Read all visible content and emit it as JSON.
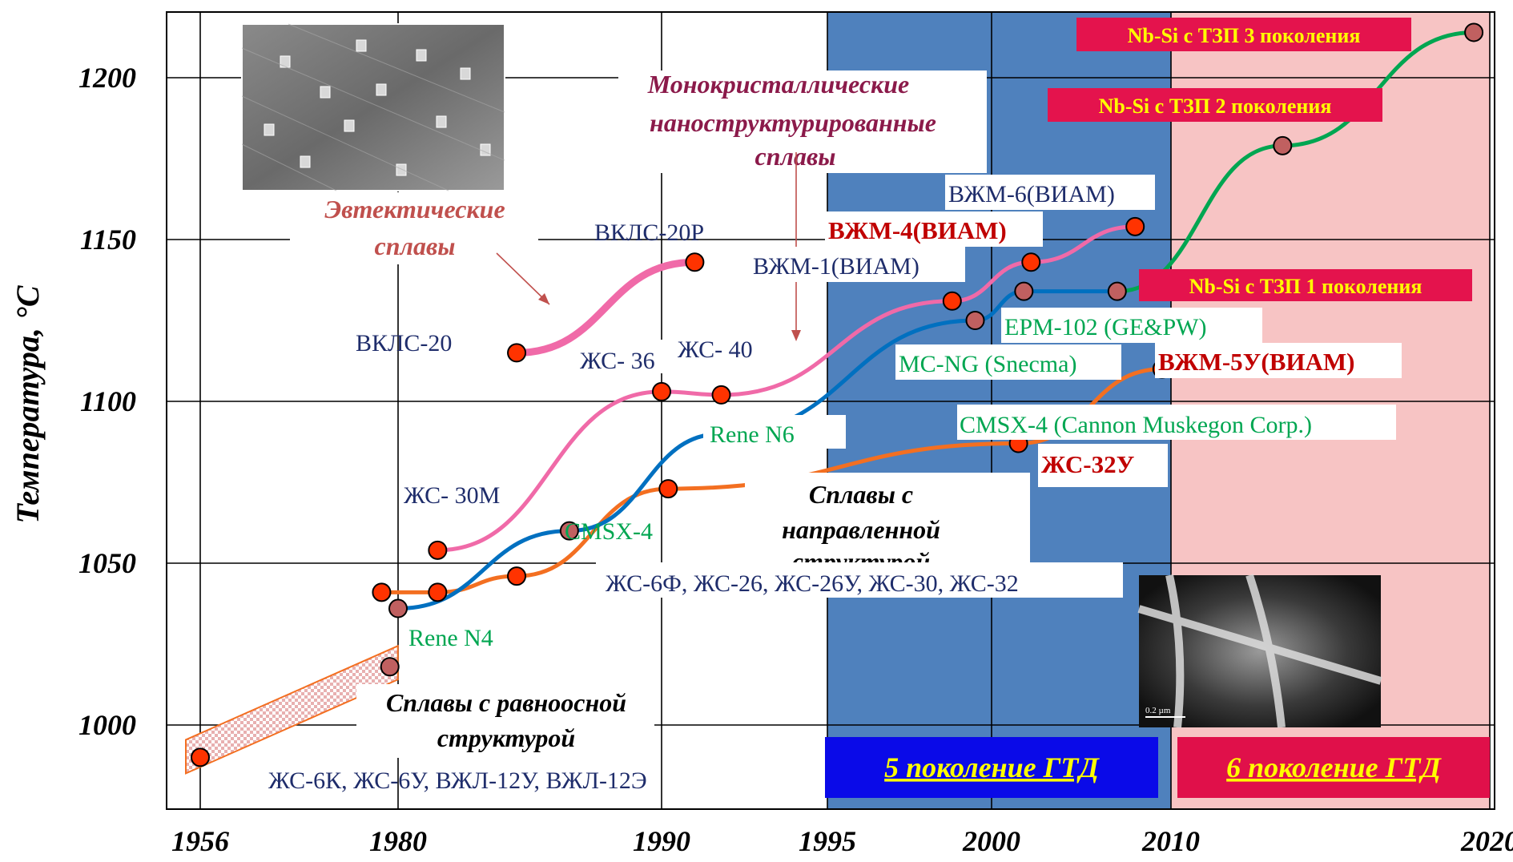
{
  "chart_data": {
    "type": "line",
    "ylabel": "Температура, °C",
    "xlabel": "",
    "x_ticks": [
      "1956",
      "1980",
      "1990",
      "1995",
      "2000",
      "2010",
      "2020"
    ],
    "x_tick_values": [
      1956,
      1980,
      1990,
      1995,
      2000,
      2010,
      2020
    ],
    "y_ticks": [
      "1000",
      "1050",
      "1100",
      "1150",
      "1200"
    ],
    "y_tick_values": [
      1000,
      1050,
      1100,
      1150,
      1200
    ],
    "ylim": [
      978,
      1222
    ],
    "grid": true,
    "regions": [
      {
        "name": "5 поколение ГТД",
        "from": 1995,
        "to": 2010,
        "color": "#4f81bd"
      },
      {
        "name": "6 поколение ГТД",
        "from": 2010,
        "to": 2020,
        "color": "#f7c4c4"
      }
    ],
    "series": [
      {
        "category": "Сплавы с равноосной структурой",
        "color": "#f36f21",
        "points": [
          {
            "x": 1956,
            "y": 990
          },
          {
            "x": 1979,
            "y": 1018
          }
        ]
      },
      {
        "category": "Сплавы с направленной структурой",
        "color": "#f36f21",
        "points": [
          {
            "x": 1978,
            "y": 1041
          },
          {
            "x": 1981.5,
            "y": 1041
          },
          {
            "x": 1984.5,
            "y": 1046
          },
          {
            "x": 1990.2,
            "y": 1073
          },
          {
            "x": 2001.5,
            "y": 1087
          },
          {
            "x": 2009.5,
            "y": 1110
          }
        ]
      },
      {
        "category": "Эвтектические сплавы",
        "color": "#f06aa8",
        "points": [
          {
            "x": 1984.5,
            "y": 1115
          },
          {
            "x": 1991,
            "y": 1143
          }
        ]
      },
      {
        "category": "Монокристаллические сплавы",
        "color": "#f06aa8",
        "points": [
          {
            "x": 1981.5,
            "y": 1054
          },
          {
            "x": 1990,
            "y": 1103
          },
          {
            "x": 1991.8,
            "y": 1102
          },
          {
            "x": 1998.8,
            "y": 1131
          },
          {
            "x": 2002.2,
            "y": 1143
          },
          {
            "x": 2008,
            "y": 1154
          }
        ]
      },
      {
        "category": "Монокристаллические сплавы",
        "color": "#0070c0",
        "points": [
          {
            "x": 1980,
            "y": 1036
          },
          {
            "x": 1986.5,
            "y": 1060
          },
          {
            "x": 1991.8,
            "y": 1090
          },
          {
            "x": 1999.5,
            "y": 1125
          },
          {
            "x": 2001.8,
            "y": 1134
          },
          {
            "x": 2007,
            "y": 1134
          }
        ]
      },
      {
        "category": "Nb-Si с ТЗП",
        "color": "#00a651",
        "points": [
          {
            "x": 2007,
            "y": 1134
          },
          {
            "x": 2013.5,
            "y": 1179
          },
          {
            "x": 2019.5,
            "y": 1214
          }
        ]
      }
    ],
    "labels": {
      "vkls20": "ВКЛС-20",
      "vkls20r": "ВКЛС-20Р",
      "zs36": "ЖС- 36",
      "zs40": "ЖС- 40",
      "zs30m": "ЖС- 30М",
      "rene_n6": "Rene N6",
      "rene_n4": "Rene N4",
      "cmsx4": "CMSX-4",
      "cmsx4_cannon": "CMSX-4 (Cannon Muskegon Corp.)",
      "vzm1": "ВЖМ-1(ВИАМ)",
      "vzm4": "ВЖМ-4(ВИАМ)",
      "vzm6": "ВЖМ-6(ВИАМ)",
      "vzm5u": "ВЖМ-5У(ВИАМ)",
      "zs32u": "ЖС-32У",
      "epm102": "EPM-102 (GE&PW)",
      "mcng": "MC-NG (Snecma)",
      "nbsi1": "Nb-Si с ТЗП 1 поколения",
      "nbsi2": "Nb-Si с ТЗП 2 поколения",
      "nbsi3": "Nb-Si с ТЗП 3 поколения",
      "eutectic_1": "Эвтектические",
      "eutectic_2": "сплавы",
      "mono_1": "Монокристаллические",
      "mono_2": "наноструктурированные",
      "mono_3": "сплавы",
      "dir_1": "Сплавы с",
      "dir_2": "направленной",
      "dir_3": "структурой",
      "dir_alloys": "ЖС-6Ф, ЖС-26, ЖС-26У, ЖС-30, ЖС-32",
      "eq_1": "Сплавы с равноосной",
      "eq_2": "структурой",
      "eq_alloys": "ЖС-6К, ЖС-6У, ВЖЛ-12У, ВЖЛ-12Э",
      "gen5": "5 поколение ГТД",
      "gen6": "6 поколение ГТД",
      "scale_bar": "0.2 µm"
    },
    "colors": {
      "dark_blue_text": "#1f2d6b",
      "red_text": "#c00000",
      "green_text": "#00a651",
      "eutectic_text": "#c0504d",
      "mono_text": "#8b1a4a",
      "marker_red": "#ff3300",
      "marker_brown": "#c06060",
      "gen5_box": "#0a0ae8",
      "gen6_box": "#e0104a",
      "gen_text": "#ffff00",
      "nbsi_box": "#e4134d"
    }
  }
}
